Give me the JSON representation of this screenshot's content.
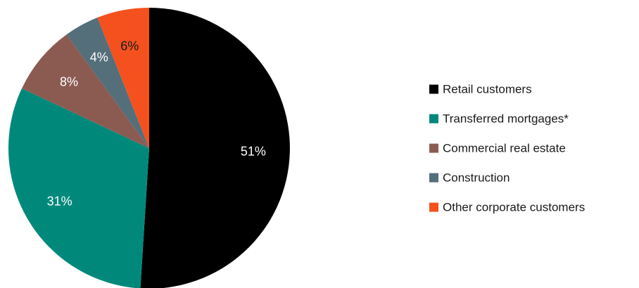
{
  "chart_data": {
    "type": "pie",
    "title": "",
    "start_angle_deg": 0,
    "direction": "clockwise",
    "legend_position": "right",
    "slices": [
      {
        "label": "Retail customers",
        "value": 51,
        "value_label": "51%",
        "color": "#000000",
        "label_color": "#ffffff"
      },
      {
        "label": "Transferred mortgages*",
        "value": 31,
        "value_label": "31%",
        "color": "#00897b",
        "label_color": "#ffffff"
      },
      {
        "label": "Commercial real estate",
        "value": 8,
        "value_label": "8%",
        "color": "#8b5b52",
        "label_color": "#ffffff"
      },
      {
        "label": "Construction",
        "value": 4,
        "value_label": "4%",
        "color": "#546e7a",
        "label_color": "#ffffff"
      },
      {
        "label": "Other corporate customers",
        "value": 6,
        "value_label": "6%",
        "color": "#f4511e",
        "label_color": "#1a1a1a"
      }
    ]
  }
}
